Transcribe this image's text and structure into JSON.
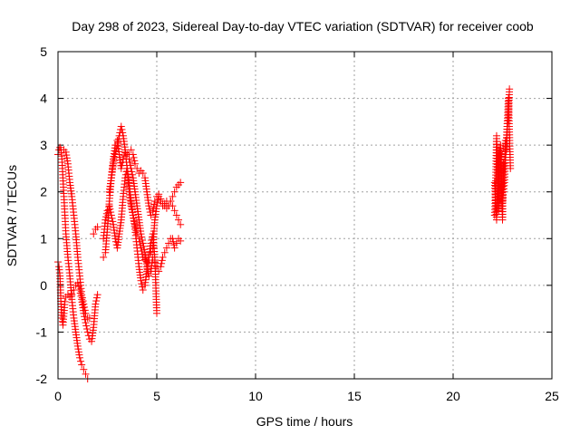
{
  "chart_data": {
    "type": "scatter",
    "title": "Day 298 of 2023, Sidereal Day-to-day VTEC variation (SDTVAR) for receiver coob",
    "xlabel": "GPS time / hours",
    "ylabel": "SDTVAR / TECUs",
    "xlim": [
      0,
      25
    ],
    "ylim": [
      -2,
      5
    ],
    "xticks": [
      "0",
      "5",
      "10",
      "15",
      "20",
      "25"
    ],
    "yticks": [
      "-2",
      "-1",
      "0",
      "1",
      "2",
      "3",
      "4",
      "5"
    ],
    "grid": true,
    "marker": "plus",
    "color": "#ff0000",
    "series": [
      {
        "x": [
          0.0,
          0.05,
          0.1,
          0.15,
          0.2,
          0.25,
          0.3,
          0.35,
          0.4,
          0.5,
          0.6,
          0.7,
          0.8,
          0.9,
          1.0,
          1.1,
          1.2,
          1.3,
          1.4,
          1.5
        ],
        "y": [
          2.8,
          2.9,
          2.95,
          2.9,
          2.7,
          2.3,
          1.9,
          1.5,
          1.1,
          0.6,
          0.2,
          -0.3,
          -0.7,
          -1.0,
          -1.3,
          -1.55,
          -1.7,
          -1.8,
          -1.9,
          -2.0
        ]
      },
      {
        "x": [
          0.0,
          0.05,
          0.1,
          0.15,
          0.2,
          0.25,
          0.3,
          0.35,
          0.4,
          0.5,
          0.6,
          0.7,
          0.8,
          0.9,
          1.0,
          1.1,
          1.2,
          1.3,
          1.4,
          1.5,
          1.6,
          1.7,
          1.8,
          1.9,
          2.0
        ],
        "y": [
          0.5,
          0.4,
          0.2,
          -0.4,
          -0.7,
          -0.85,
          -0.6,
          -0.35,
          -0.25,
          -0.2,
          -0.25,
          -0.2,
          -0.1,
          0.0,
          0.05,
          -0.1,
          -0.3,
          -0.6,
          -0.8,
          -1.0,
          -1.15,
          -1.2,
          -0.9,
          -0.4,
          -0.2
        ]
      },
      {
        "x": [
          0.3,
          0.4,
          0.5,
          0.6,
          0.7,
          0.8,
          0.9,
          1.0,
          1.1,
          1.2,
          1.3,
          1.4,
          1.5,
          1.6
        ],
        "y": [
          2.9,
          2.85,
          2.6,
          2.2,
          1.9,
          1.5,
          1.1,
          0.6,
          0.2,
          -0.2,
          -0.4,
          -0.6,
          -0.7,
          -0.7
        ]
      },
      {
        "x": [
          1.8,
          1.9,
          2.0
        ],
        "y": [
          1.1,
          1.2,
          1.25
        ]
      },
      {
        "x": [
          2.3,
          2.4,
          2.5,
          2.6,
          2.7,
          2.8,
          2.9,
          3.0,
          3.1,
          3.2,
          3.3,
          3.4,
          3.5,
          3.6,
          3.7,
          3.8,
          3.9,
          4.0,
          4.1,
          4.2,
          4.3,
          4.4,
          4.5,
          4.6,
          4.7,
          4.8,
          4.9,
          5.0,
          5.1,
          5.2,
          5.3,
          5.4,
          5.5,
          5.6,
          5.7,
          5.8,
          5.9,
          6.0,
          6.1,
          6.2
        ],
        "y": [
          0.6,
          0.7,
          1.2,
          1.8,
          2.3,
          2.7,
          3.0,
          3.1,
          2.8,
          2.5,
          2.7,
          2.85,
          2.8,
          2.7,
          2.5,
          2.3,
          2.0,
          1.7,
          1.4,
          1.1,
          0.9,
          0.7,
          0.4,
          0.2,
          0.3,
          0.6,
          0.5,
          0.4,
          0.3,
          0.4,
          0.6,
          0.7,
          0.8,
          0.9,
          1.0,
          1.0,
          0.8,
          0.9,
          1.0,
          0.95
        ]
      },
      {
        "x": [
          2.3,
          2.4,
          2.5,
          2.6,
          2.7,
          2.8,
          2.9,
          3.0,
          3.1,
          3.2,
          3.3,
          3.4,
          3.5,
          3.6,
          3.7,
          3.8,
          3.9,
          4.0,
          4.1,
          4.2,
          4.3,
          4.4,
          4.5,
          4.6,
          4.7,
          4.8,
          4.9,
          5.0
        ],
        "y": [
          1.0,
          1.4,
          1.6,
          1.7,
          1.5,
          1.3,
          1.0,
          0.8,
          1.1,
          1.4,
          1.9,
          2.3,
          2.5,
          2.2,
          1.8,
          1.5,
          1.2,
          0.8,
          0.4,
          0.1,
          -0.1,
          0.0,
          0.3,
          0.6,
          0.9,
          1.1,
          0.6,
          -0.6
        ]
      },
      {
        "x": [
          2.6,
          2.7,
          2.8,
          2.9,
          3.0,
          3.1,
          3.2,
          3.3,
          3.4,
          3.5,
          3.6,
          3.7,
          3.8,
          3.9,
          4.0,
          4.1,
          4.2,
          4.3,
          4.4,
          4.5,
          4.6,
          4.7,
          4.8,
          4.9,
          5.0,
          5.1,
          5.2,
          5.3,
          5.4,
          5.5,
          5.6,
          5.7,
          5.8,
          5.9,
          6.0,
          6.1,
          6.2
        ],
        "y": [
          2.0,
          2.3,
          2.6,
          2.8,
          3.0,
          3.2,
          3.4,
          3.2,
          2.9,
          2.5,
          2.0,
          1.7,
          1.5,
          1.3,
          1.1,
          1.0,
          0.8,
          0.6,
          0.55,
          0.5,
          0.6,
          0.7,
          0.8,
          1.4,
          1.7,
          1.9,
          1.8,
          1.7,
          1.75,
          1.8,
          1.7,
          1.8,
          1.7,
          1.6,
          1.5,
          1.4,
          1.3
        ]
      },
      {
        "x": [
          3.6,
          3.7,
          3.8,
          3.9,
          4.0,
          4.1,
          4.2,
          4.3,
          4.4,
          4.5,
          4.6,
          4.7,
          4.8,
          4.9,
          5.0,
          5.1,
          5.2,
          5.3,
          5.4,
          5.5,
          5.6,
          5.7,
          5.8,
          5.9,
          6.0,
          6.1,
          6.2
        ],
        "y": [
          2.8,
          2.9,
          2.8,
          2.6,
          2.5,
          2.4,
          2.45,
          2.4,
          2.3,
          2.0,
          1.7,
          1.5,
          1.6,
          1.8,
          1.9,
          1.95,
          1.85,
          1.75,
          1.7,
          1.65,
          1.7,
          1.8,
          1.9,
          2.0,
          2.1,
          2.15,
          2.2
        ]
      },
      {
        "x": [
          22.1,
          22.15,
          22.2,
          22.25,
          22.3,
          22.35,
          22.4,
          22.45,
          22.5,
          22.55,
          22.6,
          22.65,
          22.7,
          22.75,
          22.8,
          22.85
        ],
        "y": [
          1.5,
          2.0,
          3.2,
          2.4,
          1.6,
          2.8,
          3.0,
          2.1,
          1.4,
          2.6,
          2.5,
          3.1,
          2.9,
          3.4,
          3.6,
          4.2
        ]
      },
      {
        "x": [
          22.1,
          22.2,
          22.3,
          22.4,
          22.5,
          22.6,
          22.7,
          22.8,
          22.9
        ],
        "y": [
          2.2,
          1.4,
          2.9,
          2.7,
          1.8,
          2.2,
          3.1,
          4.0,
          2.5
        ]
      }
    ]
  }
}
